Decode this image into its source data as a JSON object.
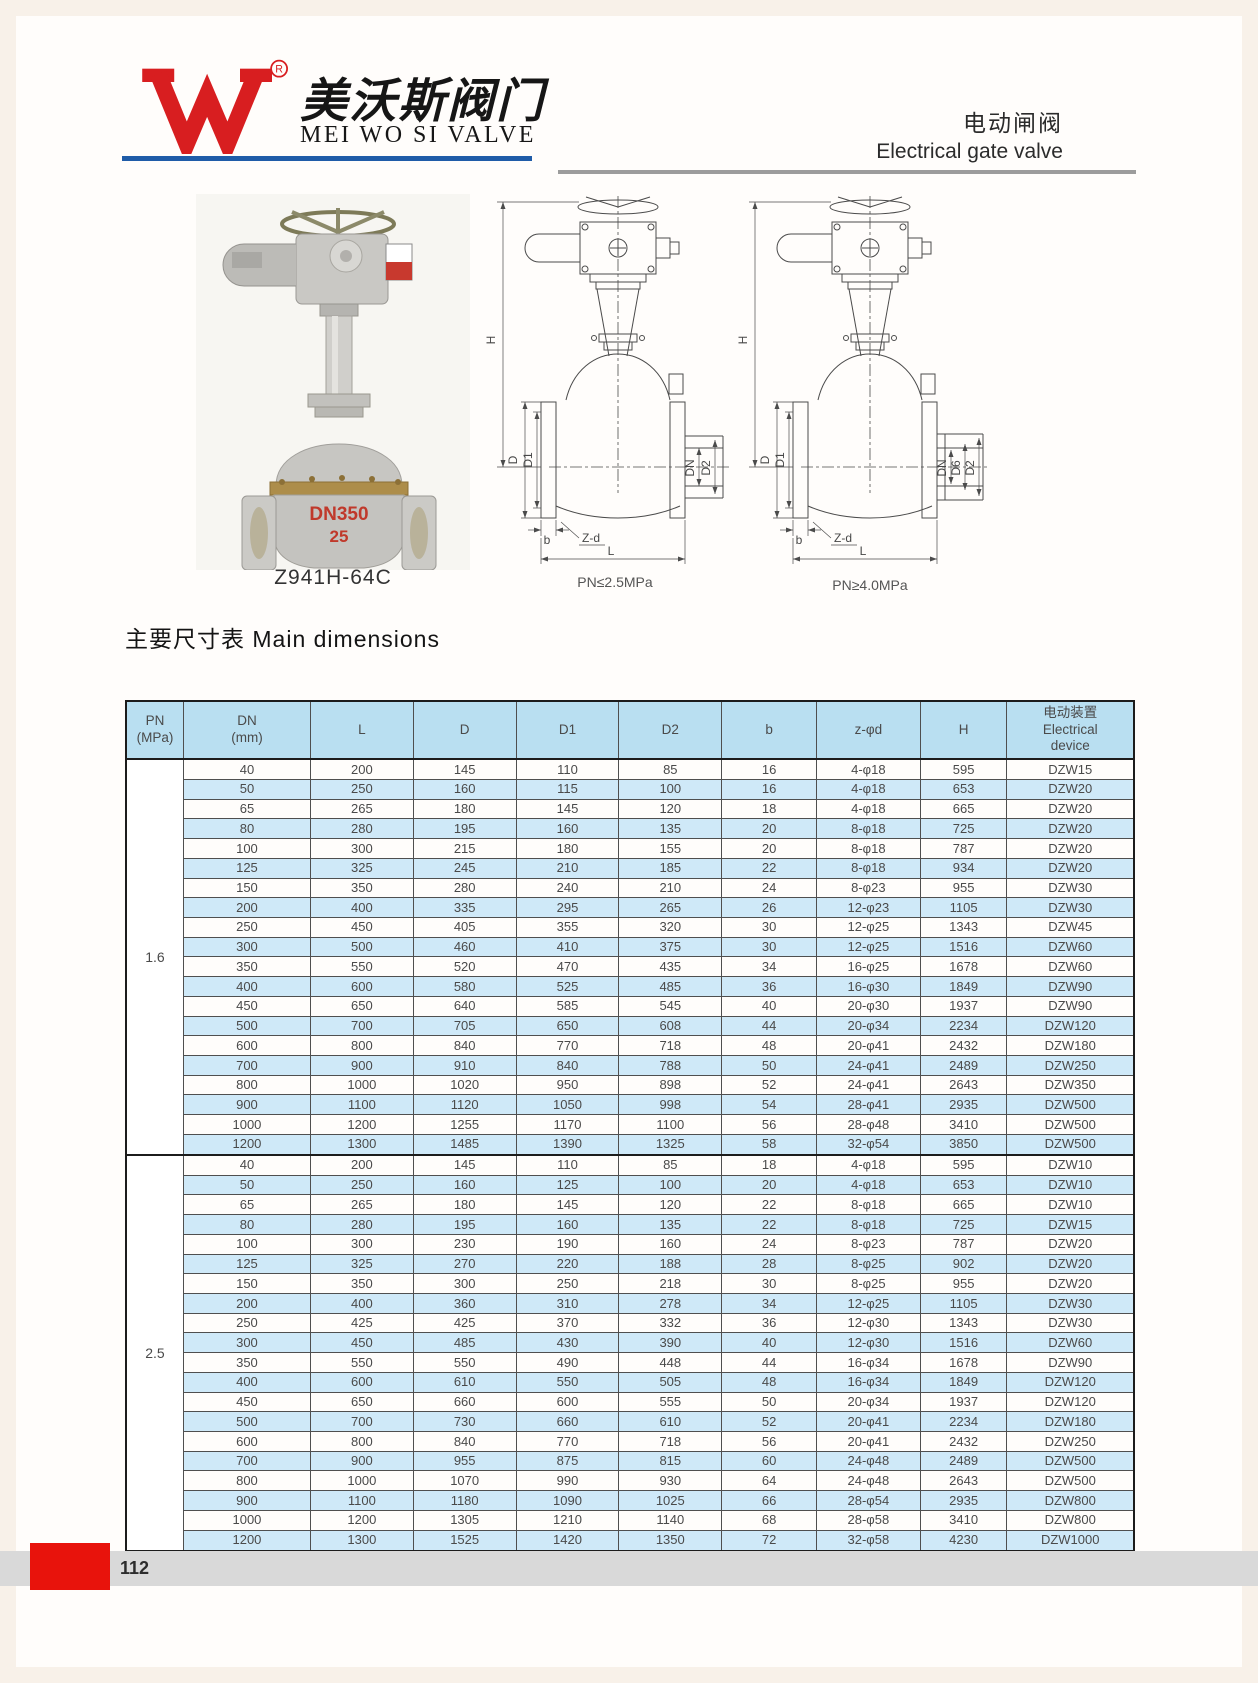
{
  "header": {
    "brand_mark": "W",
    "brand_registered": "R",
    "brand_name_cn": "美沃斯阀门",
    "brand_name_en": "MEI WO SI VALVE",
    "product_title_cn": "电动闸阀",
    "product_title_en": "Electrical gate valve"
  },
  "figures": {
    "photo_caption": "Z941H-64C",
    "photo_markings": [
      "DN350",
      "25"
    ],
    "drawing_left_caption": "PN≤2.5MPa",
    "drawing_right_caption": "PN≥4.0MPa",
    "dim_labels": {
      "H": "H",
      "D": "D",
      "D1": "D1",
      "DN": "DN",
      "D2": "D2",
      "D6": "D6",
      "b": "b",
      "Zd": "Z-d",
      "L": "L"
    }
  },
  "section": {
    "title": "主要尺寸表 Main dimensions"
  },
  "table": {
    "headers": [
      "PN\n(MPa)",
      "DN\n(mm)",
      "L",
      "D",
      "D1",
      "D2",
      "b",
      "z-φd",
      "H",
      "电动装置\nElectrical\ndevice"
    ],
    "groups": [
      {
        "pn": "1.6",
        "rows": [
          [
            40,
            200,
            145,
            110,
            85,
            16,
            "4-φ18",
            595,
            "DZW15"
          ],
          [
            50,
            250,
            160,
            115,
            100,
            16,
            "4-φ18",
            653,
            "DZW20"
          ],
          [
            65,
            265,
            180,
            145,
            120,
            18,
            "4-φ18",
            665,
            "DZW20"
          ],
          [
            80,
            280,
            195,
            160,
            135,
            20,
            "8-φ18",
            725,
            "DZW20"
          ],
          [
            100,
            300,
            215,
            180,
            155,
            20,
            "8-φ18",
            787,
            "DZW20"
          ],
          [
            125,
            325,
            245,
            210,
            185,
            22,
            "8-φ18",
            934,
            "DZW20"
          ],
          [
            150,
            350,
            280,
            240,
            210,
            24,
            "8-φ23",
            955,
            "DZW30"
          ],
          [
            200,
            400,
            335,
            295,
            265,
            26,
            "12-φ23",
            1105,
            "DZW30"
          ],
          [
            250,
            450,
            405,
            355,
            320,
            30,
            "12-φ25",
            1343,
            "DZW45"
          ],
          [
            300,
            500,
            460,
            410,
            375,
            30,
            "12-φ25",
            1516,
            "DZW60"
          ],
          [
            350,
            550,
            520,
            470,
            435,
            34,
            "16-φ25",
            1678,
            "DZW60"
          ],
          [
            400,
            600,
            580,
            525,
            485,
            36,
            "16-φ30",
            1849,
            "DZW90"
          ],
          [
            450,
            650,
            640,
            585,
            545,
            40,
            "20-φ30",
            1937,
            "DZW90"
          ],
          [
            500,
            700,
            705,
            650,
            608,
            44,
            "20-φ34",
            2234,
            "DZW120"
          ],
          [
            600,
            800,
            840,
            770,
            718,
            48,
            "20-φ41",
            2432,
            "DZW180"
          ],
          [
            700,
            900,
            910,
            840,
            788,
            50,
            "24-φ41",
            2489,
            "DZW250"
          ],
          [
            800,
            1000,
            1020,
            950,
            898,
            52,
            "24-φ41",
            2643,
            "DZW350"
          ],
          [
            900,
            1100,
            1120,
            1050,
            998,
            54,
            "28-φ41",
            2935,
            "DZW500"
          ],
          [
            1000,
            1200,
            1255,
            1170,
            1100,
            56,
            "28-φ48",
            3410,
            "DZW500"
          ],
          [
            1200,
            1300,
            1485,
            1390,
            1325,
            58,
            "32-φ54",
            3850,
            "DZW500"
          ]
        ]
      },
      {
        "pn": "2.5",
        "rows": [
          [
            40,
            200,
            145,
            110,
            85,
            18,
            "4-φ18",
            595,
            "DZW10"
          ],
          [
            50,
            250,
            160,
            125,
            100,
            20,
            "4-φ18",
            653,
            "DZW10"
          ],
          [
            65,
            265,
            180,
            145,
            120,
            22,
            "8-φ18",
            665,
            "DZW10"
          ],
          [
            80,
            280,
            195,
            160,
            135,
            22,
            "8-φ18",
            725,
            "DZW15"
          ],
          [
            100,
            300,
            230,
            190,
            160,
            24,
            "8-φ23",
            787,
            "DZW20"
          ],
          [
            125,
            325,
            270,
            220,
            188,
            28,
            "8-φ25",
            902,
            "DZW20"
          ],
          [
            150,
            350,
            300,
            250,
            218,
            30,
            "8-φ25",
            955,
            "DZW20"
          ],
          [
            200,
            400,
            360,
            310,
            278,
            34,
            "12-φ25",
            1105,
            "DZW30"
          ],
          [
            250,
            425,
            425,
            370,
            332,
            36,
            "12-φ30",
            1343,
            "DZW30"
          ],
          [
            300,
            450,
            485,
            430,
            390,
            40,
            "12-φ30",
            1516,
            "DZW60"
          ],
          [
            350,
            550,
            550,
            490,
            448,
            44,
            "16-φ34",
            1678,
            "DZW90"
          ],
          [
            400,
            600,
            610,
            550,
            505,
            48,
            "16-φ34",
            1849,
            "DZW120"
          ],
          [
            450,
            650,
            660,
            600,
            555,
            50,
            "20-φ34",
            1937,
            "DZW120"
          ],
          [
            500,
            700,
            730,
            660,
            610,
            52,
            "20-φ41",
            2234,
            "DZW180"
          ],
          [
            600,
            800,
            840,
            770,
            718,
            56,
            "20-φ41",
            2432,
            "DZW250"
          ],
          [
            700,
            900,
            955,
            875,
            815,
            60,
            "24-φ48",
            2489,
            "DZW500"
          ],
          [
            800,
            1000,
            1070,
            990,
            930,
            64,
            "24-φ48",
            2643,
            "DZW500"
          ],
          [
            900,
            1100,
            1180,
            1090,
            1025,
            66,
            "28-φ54",
            2935,
            "DZW800"
          ],
          [
            1000,
            1200,
            1305,
            1210,
            1140,
            68,
            "28-φ58",
            3410,
            "DZW800"
          ],
          [
            1200,
            1300,
            1525,
            1420,
            1350,
            72,
            "32-φ58",
            4230,
            "DZW1000"
          ]
        ]
      }
    ]
  },
  "footer": {
    "page_number": "112"
  },
  "colors": {
    "accent_red": "#d81e20",
    "rule_blue": "#1f5ca8",
    "table_header_bg": "#b9dff1",
    "table_stripe_bg": "#cfe9f8",
    "footer_red": "#e8130c",
    "footer_strip": "#d9d9d9"
  }
}
